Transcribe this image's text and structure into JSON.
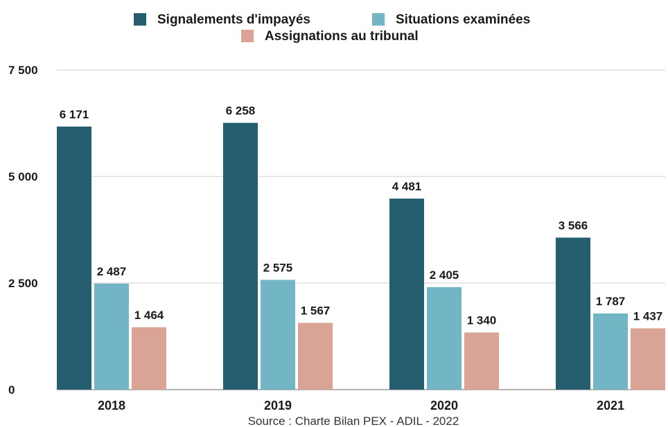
{
  "chart_data": {
    "type": "bar",
    "categories": [
      "2018",
      "2019",
      "2020",
      "2021"
    ],
    "series": [
      {
        "name": "Signalements d'impayés",
        "color": "#255e6f",
        "values": [
          6171,
          6258,
          4481,
          3566
        ],
        "labels": [
          "6 171",
          "6 258",
          "4 481",
          "3 566"
        ]
      },
      {
        "name": "Situations examinées",
        "color": "#72b6c6",
        "values": [
          2487,
          2575,
          2405,
          1787
        ],
        "labels": [
          "2 487",
          "2 575",
          "2 405",
          "1 787"
        ]
      },
      {
        "name": "Assignations au tribunal",
        "color": "#d9a395",
        "values": [
          1464,
          1567,
          1340,
          1437
        ],
        "labels": [
          "1 464",
          "1 567",
          "1 340",
          "1 437"
        ]
      }
    ],
    "yticks": [
      0,
      2500,
      5000,
      7500
    ],
    "ytick_labels": [
      "0",
      "2 500",
      "5 000",
      "7 500"
    ],
    "ylim": [
      0,
      7500
    ],
    "grid": true,
    "legend_position": "top-center"
  },
  "source": "Source : Charte Bilan PEX - ADIL - 2022"
}
